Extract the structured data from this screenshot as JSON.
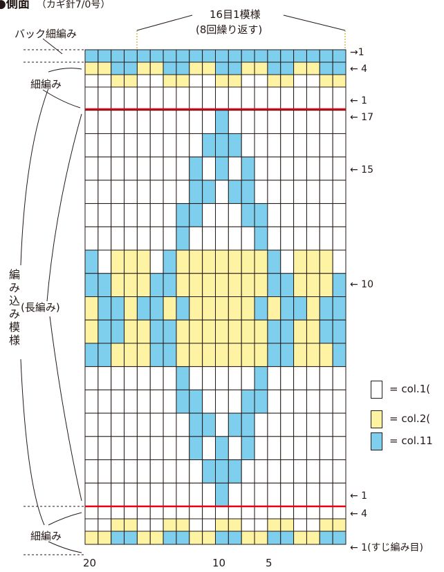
{
  "title": {
    "main": "●側面",
    "sub": "（カギ針7/0号）"
  },
  "repeat_label": {
    "line1": "16目1模様",
    "line2": "(8回繰り返す)"
  },
  "section_labels": {
    "back_sc": "バック細編み",
    "sc_top": "細編み",
    "sc_bottom": "細編み",
    "dc": "(長編み)",
    "colorwork": "編み込み模様"
  },
  "row_labels": {
    "top_back": "→1",
    "top_sc4": "← 4",
    "top_sc1": "← 1",
    "dc17": "← 17",
    "dc15": "← 15",
    "dc10": "← 10",
    "dc1": "← 1",
    "bot_sc4": "← 4",
    "bot_sc1": "← 1(すじ編み目)"
  },
  "column_labels": [
    "20",
    "10",
    "5"
  ],
  "legend": [
    {
      "text": "= col.1(",
      "color": "#ffffff"
    },
    {
      "text": "= col.2(",
      "color": "#fdf3a2"
    },
    {
      "text": "= col.11",
      "color": "#7ecfee"
    }
  ],
  "colors": {
    "white": "#ffffff",
    "yellow": "#fdf3a2",
    "blue": "#7ecfee",
    "grid": "#231815",
    "red_line": "#e60012"
  },
  "chart_data": {
    "type": "knitting-chart",
    "columns": 20,
    "color_key": {
      "W": "col.1",
      "Y": "col.2",
      "B": "col.11"
    },
    "rows_top_to_bottom": [
      "BBBBBBBBBBBBBBBBBBBB",
      "YYBBYYBBYYBBYYBBYYBB",
      "WWYYWWYYWWYYWWYYWWYY",
      "WWWWWWWWWWWWWWWWWWWW",
      "WWWWWWWWWWBWWWWWWWWW",
      "WWWWWWWWWBBBWWWWWWWW",
      "WWWWWWWWBWBWBWWWWWWW",
      "WWWWWWWWBBWBBWWWWWWW",
      "WWWWWWWBBWWWBBWWWWWW",
      "WWWWWWWBWWWWWBWWWWWW",
      "BWYYYWBYYYYYYYBWYYYW",
      "BBYYYBBYYYYYYYBBYYYB",
      "YBBYBBYBYYYYYBYBBYBB",
      "YBBYYBBYYYYYYYBBYYBB",
      "BBYYYBBYYYYYYYBBYYYB",
      "WWWWWWWBWWWWWBWWWWWW",
      "WWWWWWWBBWWWBBWWWWWW",
      "WWWWWWWWBBWBBWWWWWWW",
      "WWWWWWWWBWBWBWWWWWWW",
      "WWWWWWWWWBBBWWWWWWWW",
      "WWWWWWWWWWBWWWWWWWWW",
      "WWWWWWWWWWWWWWWWWWWW",
      "WWYYWWYYWWYYWWYYWWYY",
      "YYBBYYBBYYBBYYBBYYBB"
    ]
  }
}
